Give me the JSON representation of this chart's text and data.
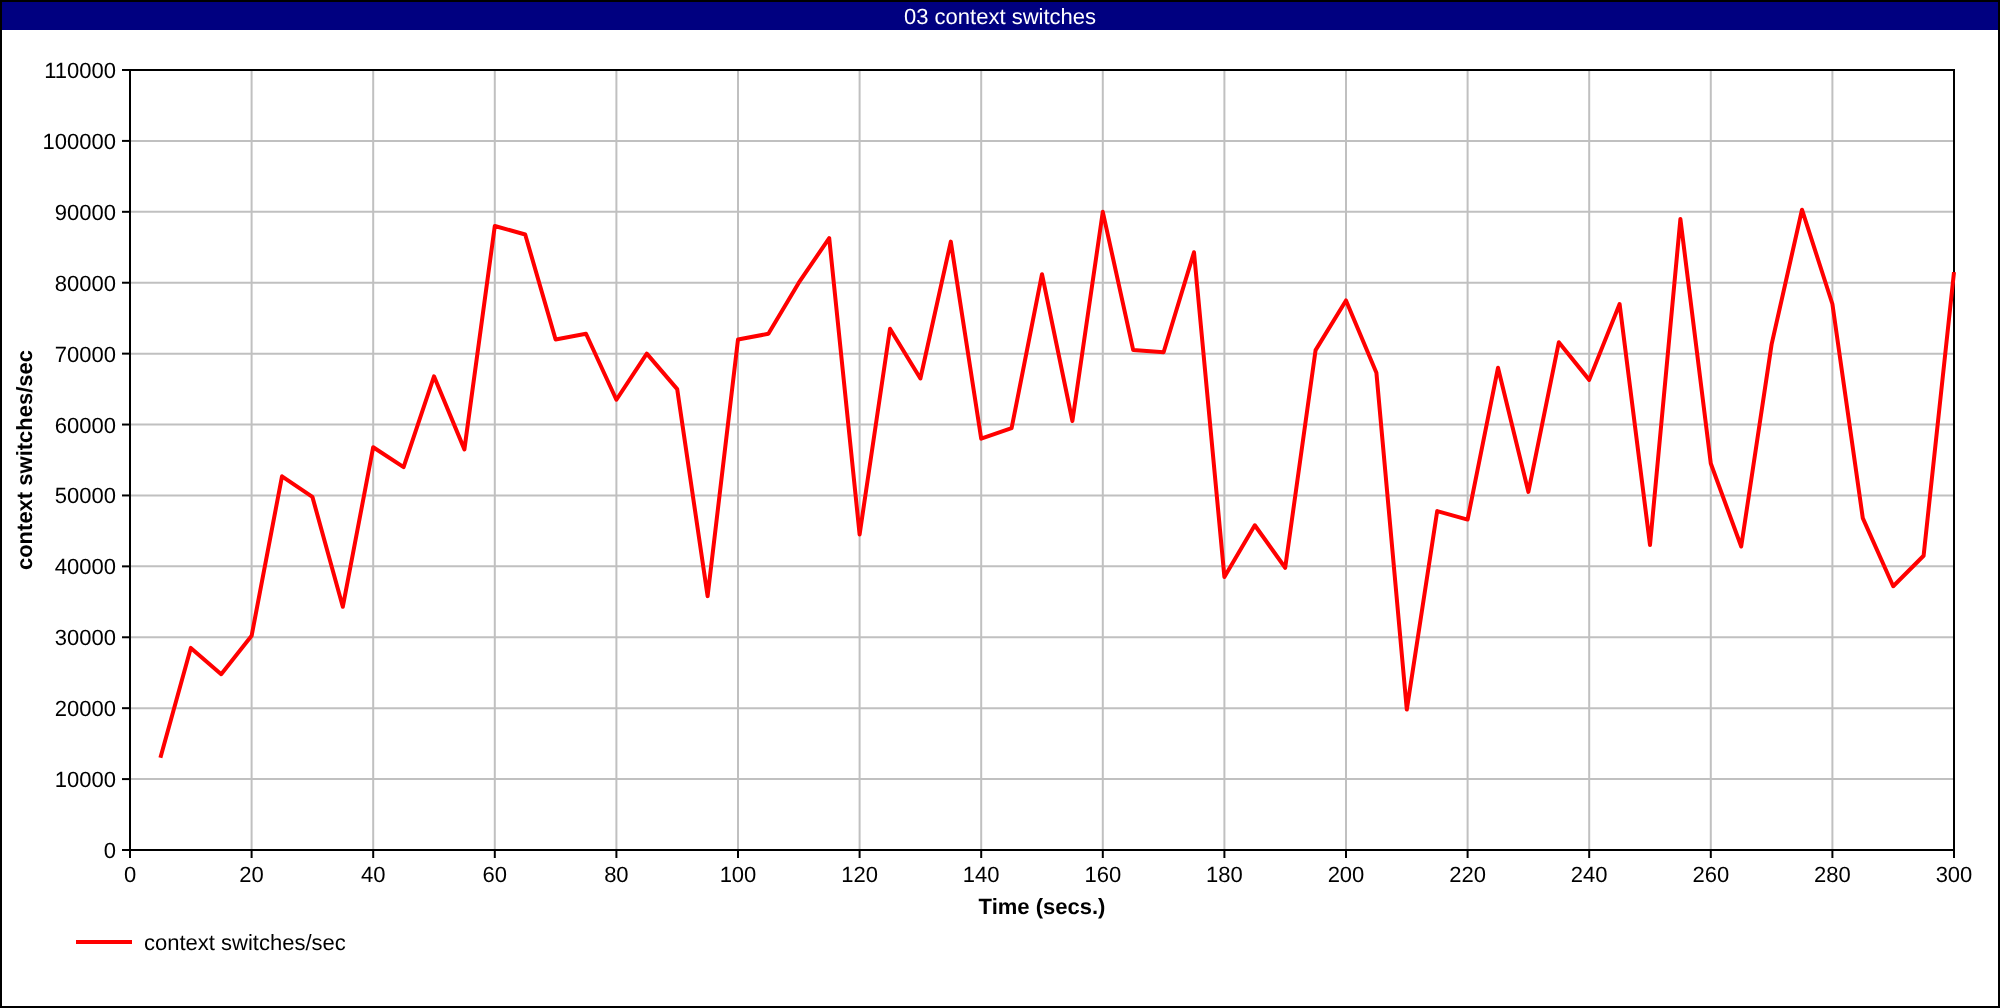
{
  "chart_data": {
    "type": "line",
    "title": "03 context switches",
    "xlabel": "Time (secs.)",
    "ylabel": "context switches/sec",
    "x": [
      5,
      10,
      15,
      20,
      25,
      30,
      35,
      40,
      45,
      50,
      55,
      60,
      65,
      70,
      75,
      80,
      85,
      90,
      95,
      100,
      105,
      110,
      115,
      120,
      125,
      130,
      135,
      140,
      145,
      150,
      155,
      160,
      165,
      170,
      175,
      180,
      185,
      190,
      195,
      200,
      205,
      210,
      215,
      220,
      225,
      230,
      235,
      240,
      245,
      250,
      255,
      260,
      265,
      270,
      275,
      280,
      285,
      290,
      295,
      300
    ],
    "series": [
      {
        "name": "context switches/sec",
        "color": "#ff0000",
        "values": [
          13000,
          28500,
          24800,
          30200,
          52700,
          49800,
          34300,
          56800,
          54000,
          66800,
          56500,
          88000,
          86800,
          72000,
          72800,
          63500,
          70000,
          65000,
          35800,
          72000,
          72800,
          80000,
          86300,
          44500,
          73500,
          66500,
          85800,
          58000,
          59500,
          81200,
          60500,
          90000,
          70500,
          70200,
          84300,
          38500,
          45800,
          39800,
          70500,
          77500,
          67300,
          19800,
          47800,
          46600,
          68000,
          50500,
          71600,
          66300,
          77000,
          43000,
          89000,
          54500,
          42800,
          71300,
          90300,
          77000,
          46800,
          37200,
          41500,
          81500
        ]
      }
    ],
    "xlim": [
      0,
      300
    ],
    "xticks": [
      0,
      20,
      40,
      60,
      80,
      100,
      120,
      140,
      160,
      180,
      200,
      220,
      240,
      260,
      280,
      300
    ],
    "ylim": [
      0,
      110000
    ],
    "yticks": [
      0,
      10000,
      20000,
      30000,
      40000,
      50000,
      60000,
      70000,
      80000,
      90000,
      100000,
      110000
    ],
    "grid": true,
    "legend": "bottom left",
    "marker": "none",
    "line_style": "solid"
  }
}
